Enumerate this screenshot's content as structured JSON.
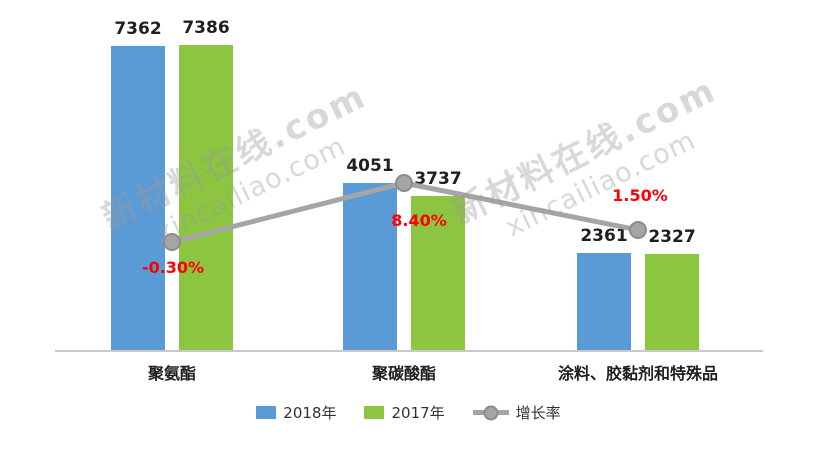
{
  "watermark": {
    "line1": "新材料在线.com",
    "line2": "xincailiao.com"
  },
  "chart_data": {
    "type": "bar",
    "categories": [
      "聚氨酯",
      "聚碳酸酯",
      "涂料、胶黏剂和特殊品"
    ],
    "series": [
      {
        "name": "2018年",
        "color": "#5B9BD5",
        "values": [
          7362,
          4051,
          2361
        ]
      },
      {
        "name": "2017年",
        "color": "#8CC540",
        "values": [
          7386,
          3737,
          2327
        ]
      }
    ],
    "growth_line": {
      "name": "增长率",
      "color": "#A5A5A5",
      "values_pct": [
        -0.3,
        8.4,
        1.5
      ],
      "labels": [
        "-0.30%",
        "8.40%",
        "1.50%"
      ],
      "label_color": "#FF0000"
    },
    "ylim": [
      0,
      8000
    ],
    "grid": false,
    "legend_position": "bottom",
    "title": "",
    "xlabel": "",
    "ylabel": ""
  }
}
